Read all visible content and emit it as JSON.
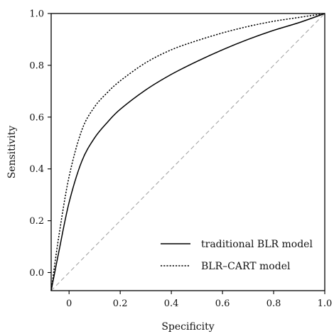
{
  "chart_data": {
    "type": "line",
    "title": "",
    "xlabel": "Specificity",
    "ylabel": "Sensitivity",
    "xlim": [
      -0.07,
      1.0
    ],
    "ylim": [
      -0.07,
      1.0
    ],
    "x_ticks": [
      0,
      0.2,
      0.4,
      0.6,
      0.8,
      1.0
    ],
    "x_tick_labels": [
      "0",
      "0.2",
      "0.4",
      "0.6",
      "0.8",
      "1.0"
    ],
    "y_ticks": [
      0.0,
      0.2,
      0.4,
      0.6,
      0.8,
      1.0
    ],
    "y_tick_labels": [
      "0.0",
      "0.2",
      "0.4",
      "0.6",
      "0.8",
      "1.0"
    ],
    "grid": false,
    "legend_position": "bottom-right",
    "series": [
      {
        "name": "traditional BLR model",
        "style": "solid",
        "color": "#000000",
        "x": [
          -0.07,
          -0.04,
          0.0,
          0.05,
          0.1,
          0.15,
          0.2,
          0.3,
          0.4,
          0.5,
          0.6,
          0.7,
          0.8,
          0.9,
          1.0
        ],
        "y": [
          -0.07,
          0.08,
          0.27,
          0.43,
          0.52,
          0.58,
          0.63,
          0.705,
          0.765,
          0.815,
          0.86,
          0.9,
          0.935,
          0.965,
          1.0
        ]
      },
      {
        "name": "BLR–CART model",
        "style": "dotted",
        "color": "#000000",
        "x": [
          -0.07,
          -0.04,
          0.0,
          0.05,
          0.1,
          0.15,
          0.2,
          0.3,
          0.4,
          0.5,
          0.6,
          0.7,
          0.8,
          0.9,
          1.0
        ],
        "y": [
          -0.07,
          0.14,
          0.37,
          0.55,
          0.64,
          0.695,
          0.74,
          0.81,
          0.86,
          0.895,
          0.925,
          0.95,
          0.97,
          0.985,
          1.0
        ]
      },
      {
        "name": "",
        "style": "dashed",
        "color": "#a6a6a6",
        "x": [
          -0.07,
          1.0
        ],
        "y": [
          -0.07,
          1.0
        ]
      }
    ]
  }
}
